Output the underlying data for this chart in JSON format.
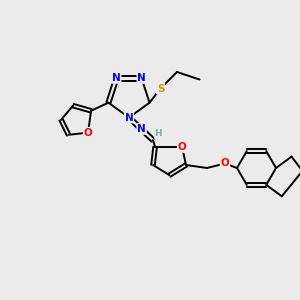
{
  "background_color": "#ebebeb",
  "bond_color": "#000000",
  "atom_colors": {
    "N": "#0000ff",
    "O": "#ff0000",
    "S": "#b8a000",
    "C": "#000000",
    "H": "#7aacac"
  },
  "figsize": [
    3.0,
    3.0
  ],
  "dpi": 100
}
